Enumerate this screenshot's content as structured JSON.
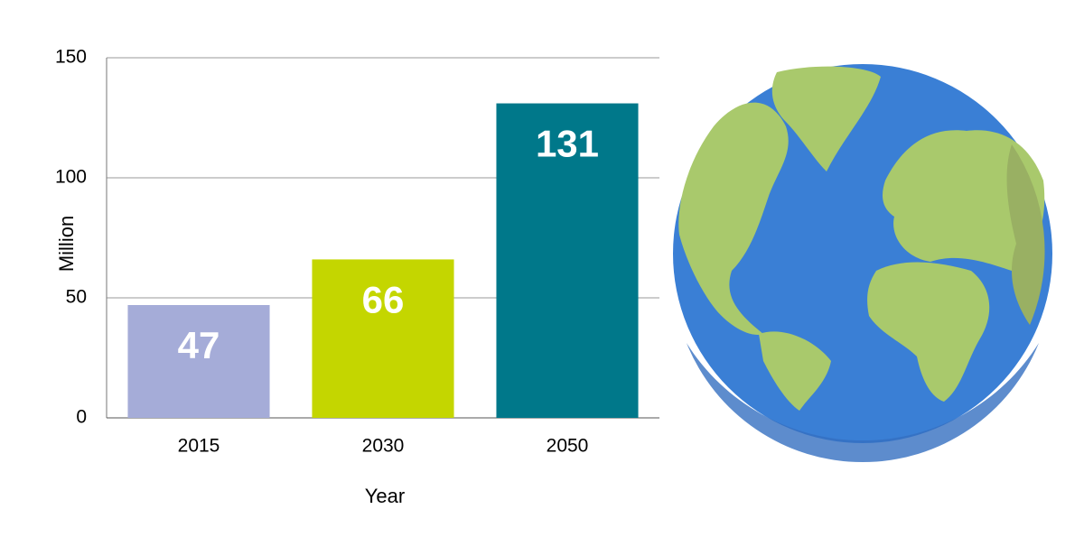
{
  "chart_data": {
    "type": "bar",
    "categories": [
      "2015",
      "2030",
      "2050"
    ],
    "values": [
      47,
      66,
      131
    ],
    "colors": [
      "#a5acd8",
      "#c4d600",
      "#00788a"
    ],
    "xlabel": "Year",
    "ylabel": "Million",
    "ylim": [
      0,
      150
    ],
    "yticks": [
      0,
      50,
      100,
      150
    ],
    "grid": true
  }
}
